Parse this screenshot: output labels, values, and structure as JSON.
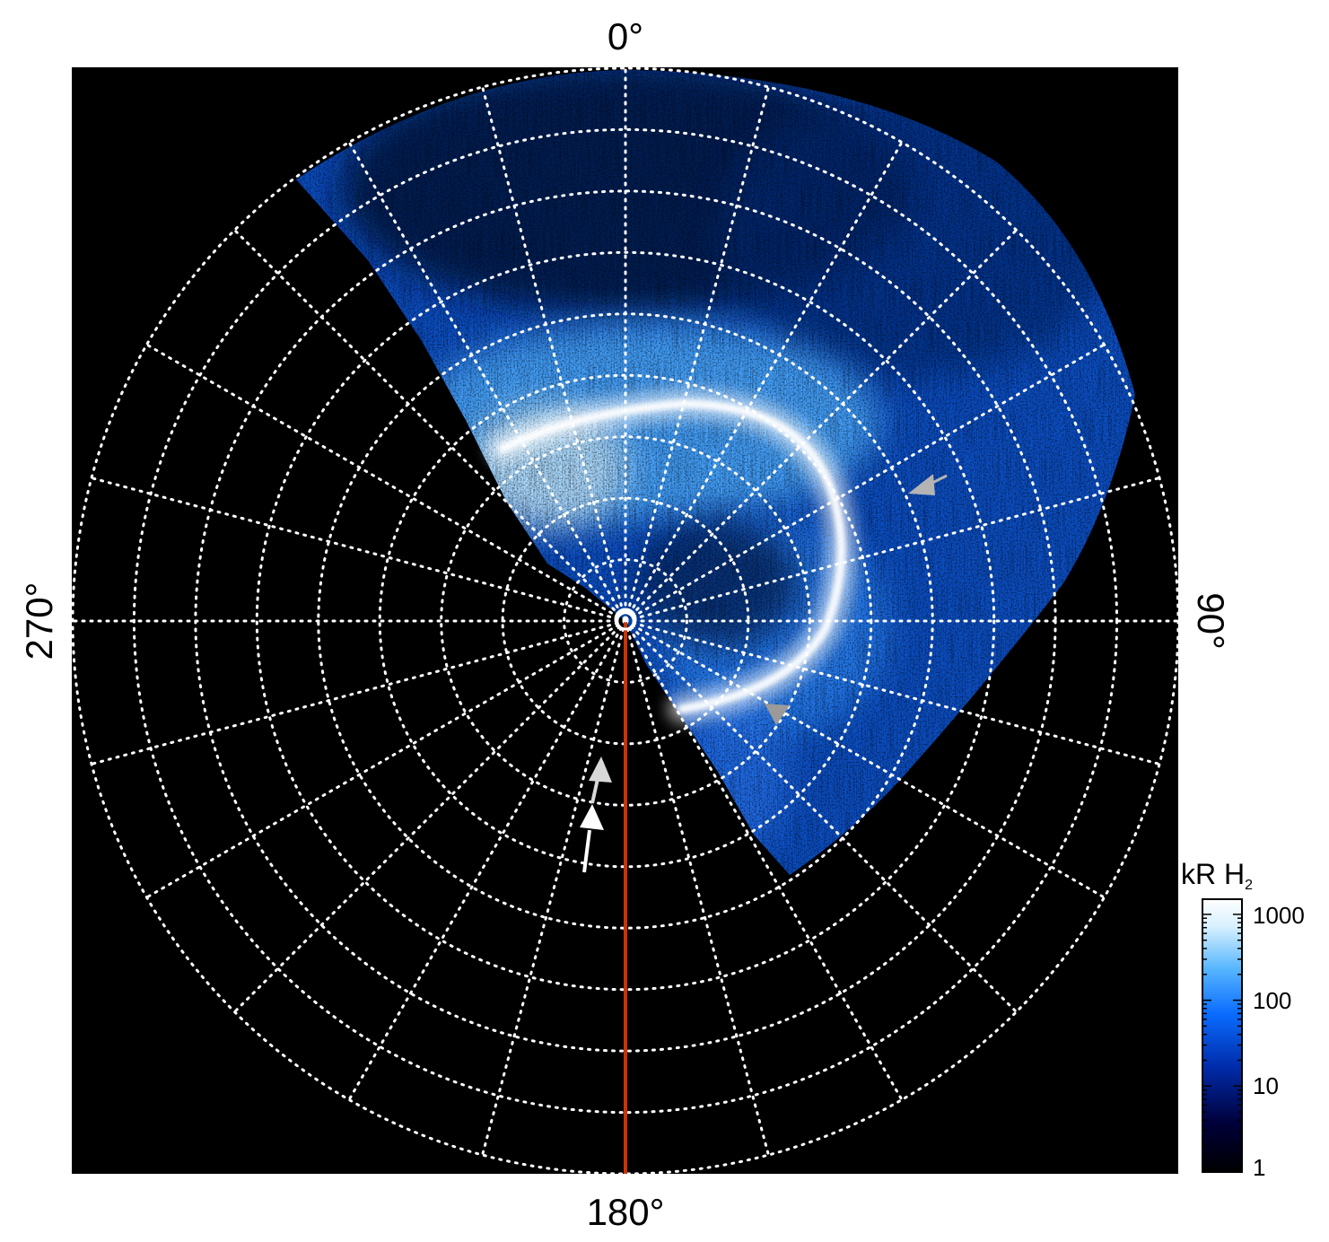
{
  "figure": {
    "azimuth_labels": {
      "top": "0°",
      "right": "90°",
      "bottom": "180°",
      "left": "270°"
    },
    "colorbar": {
      "title": "kR H",
      "title_subscript": "2",
      "scale": "log",
      "range": [
        1,
        1500
      ],
      "ticks": [
        "1",
        "10",
        "100",
        "1000"
      ],
      "colors": [
        "#000000",
        "#00003a",
        "#002aa8",
        "#0a6cff",
        "#5ab8ff",
        "#d8f0ff",
        "#ffffff"
      ]
    },
    "grid": {
      "type": "polar",
      "radial_rings": 9,
      "spokes_deg": 15,
      "style": "dotted-white"
    },
    "colors": {
      "plot_background": "#000000",
      "meridian_line": "#cc3300",
      "grid": "#ffffff",
      "marker_gray": "#b4b4b4",
      "marker_white": "#ffffff"
    },
    "features": [
      {
        "name": "main-auroral-oval",
        "color": "white"
      },
      {
        "name": "red-meridian-line",
        "azimuth_deg": 180
      },
      {
        "name": "gray-arrow-markers",
        "count": 3
      },
      {
        "name": "white-arrow-marker",
        "count": 1
      }
    ]
  }
}
